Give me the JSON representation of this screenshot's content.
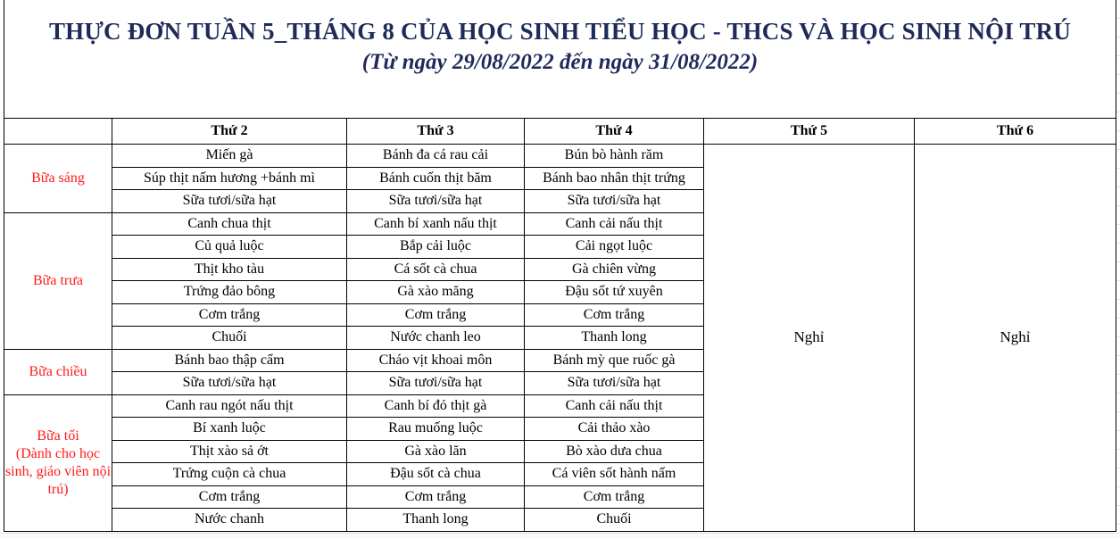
{
  "title": "THỰC ĐƠN TUẦN 5_THÁNG 8 CỦA HỌC SINH TIỂU HỌC  - THCS VÀ HỌC SINH NỘI TRÚ",
  "subtitle": "(Từ ngày 29/08/2022 đến ngày 31/08/2022)",
  "headers": [
    "",
    "Thứ 2",
    "Thứ 3",
    "Thứ 4",
    "Thứ 5",
    "Thứ 6"
  ],
  "off_label": "Nghỉ",
  "meals": [
    {
      "name": "Bữa sáng",
      "rows": [
        [
          "Miến gà",
          "Bánh đa cá rau cải",
          "Bún bò hành răm"
        ],
        [
          "Súp thịt nấm hương +bánh mì",
          "Bánh cuốn thịt băm",
          "Bánh bao nhân thịt trứng"
        ],
        [
          "Sữa tươi/sữa hạt",
          "Sữa tươi/sữa hạt",
          "Sữa tươi/sữa hạt"
        ]
      ]
    },
    {
      "name": "Bữa trưa",
      "rows": [
        [
          "Canh chua thịt",
          "Canh bí xanh nấu thịt",
          "Canh cải nấu thịt"
        ],
        [
          "Củ quả luộc",
          "Bắp cải luộc",
          "Cải ngọt luộc"
        ],
        [
          "Thịt kho tàu",
          "Cá sốt cà chua",
          "Gà chiên vừng"
        ],
        [
          "Trứng đảo bông",
          "Gà xào măng",
          "Đậu sốt tứ xuyên"
        ],
        [
          "Cơm trắng",
          "Cơm trắng",
          "Cơm trắng"
        ],
        [
          "Chuối",
          "Nước chanh leo",
          "Thanh long"
        ]
      ]
    },
    {
      "name": "Bữa chiều",
      "rows": [
        [
          "Bánh bao thập cẩm",
          "Cháo vịt khoai môn",
          "Bánh mỳ que ruốc gà"
        ],
        [
          "Sữa tươi/sữa hạt",
          "Sữa tươi/sữa hạt",
          "Sữa tươi/sữa hạt"
        ]
      ]
    },
    {
      "name": "Bữa tối\n(Dành cho học sinh, giáo viên nội trú)",
      "rows": [
        [
          "Canh rau ngót nấu thịt",
          "Canh bí đỏ thịt  gà",
          "Canh cải nấu thịt"
        ],
        [
          "Bí xanh luộc",
          "Rau muống luộc",
          "Cải thảo xào"
        ],
        [
          "Thịt xào sả ớt",
          "Gà xào lăn",
          "Bò xào dưa chua"
        ],
        [
          "Trứng cuộn cà chua",
          "Đậu sốt cà chua",
          "Cá viên sốt hành nấm"
        ],
        [
          "Cơm trắng",
          "Cơm trắng",
          "Cơm trắng"
        ],
        [
          "Nước chanh",
          "Thanh long",
          "Chuối"
        ]
      ]
    }
  ],
  "colors": {
    "title": "#1f2a5a",
    "meal_label": "#ff1a1a"
  }
}
